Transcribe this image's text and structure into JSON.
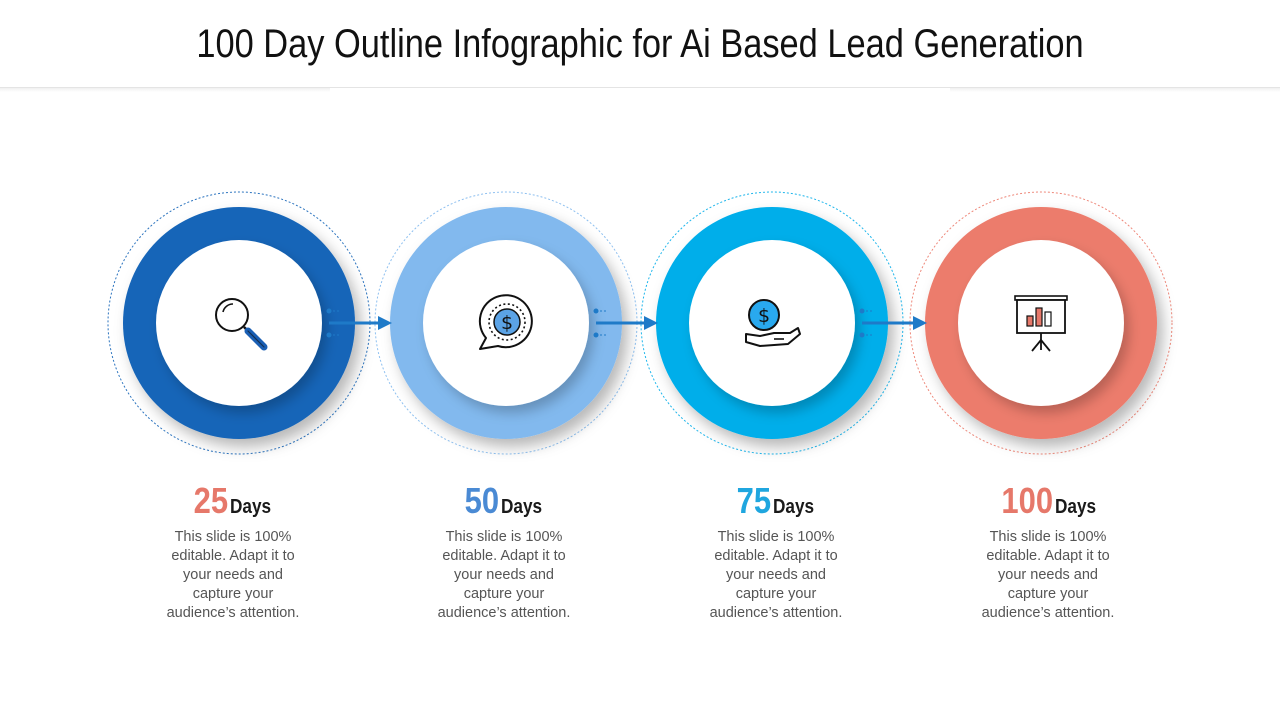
{
  "title": "100 Day Outline Infographic for Ai Based Lead Generation",
  "steps": [
    {
      "number": "25",
      "unit": "Days",
      "description": "This slide is 100% editable. Adapt it to your needs and capture your audience’s attention.",
      "color": "#1565b8",
      "number_color": "#e6786a",
      "icon": "magnifier-icon"
    },
    {
      "number": "50",
      "unit": "Days",
      "description": "This slide is 100% editable. Adapt it to your needs and capture your audience’s attention.",
      "color": "#82b9ee",
      "number_color": "#4a8ad4",
      "icon": "dollar-chat-icon"
    },
    {
      "number": "75",
      "unit": "Days",
      "description": "This slide is 100% editable. Adapt it to your needs and capture your audience’s attention.",
      "color": "#05aeea",
      "number_color": "#1fa6df",
      "icon": "hand-coin-icon"
    },
    {
      "number": "100",
      "unit": "Days",
      "description": "This slide is 100% editable. Adapt it to your needs and capture your audience’s attention.",
      "color": "#ec7b6c",
      "number_color": "#e6786a",
      "icon": "presentation-chart-icon"
    }
  ],
  "arrow_color": "#1e7ac8"
}
